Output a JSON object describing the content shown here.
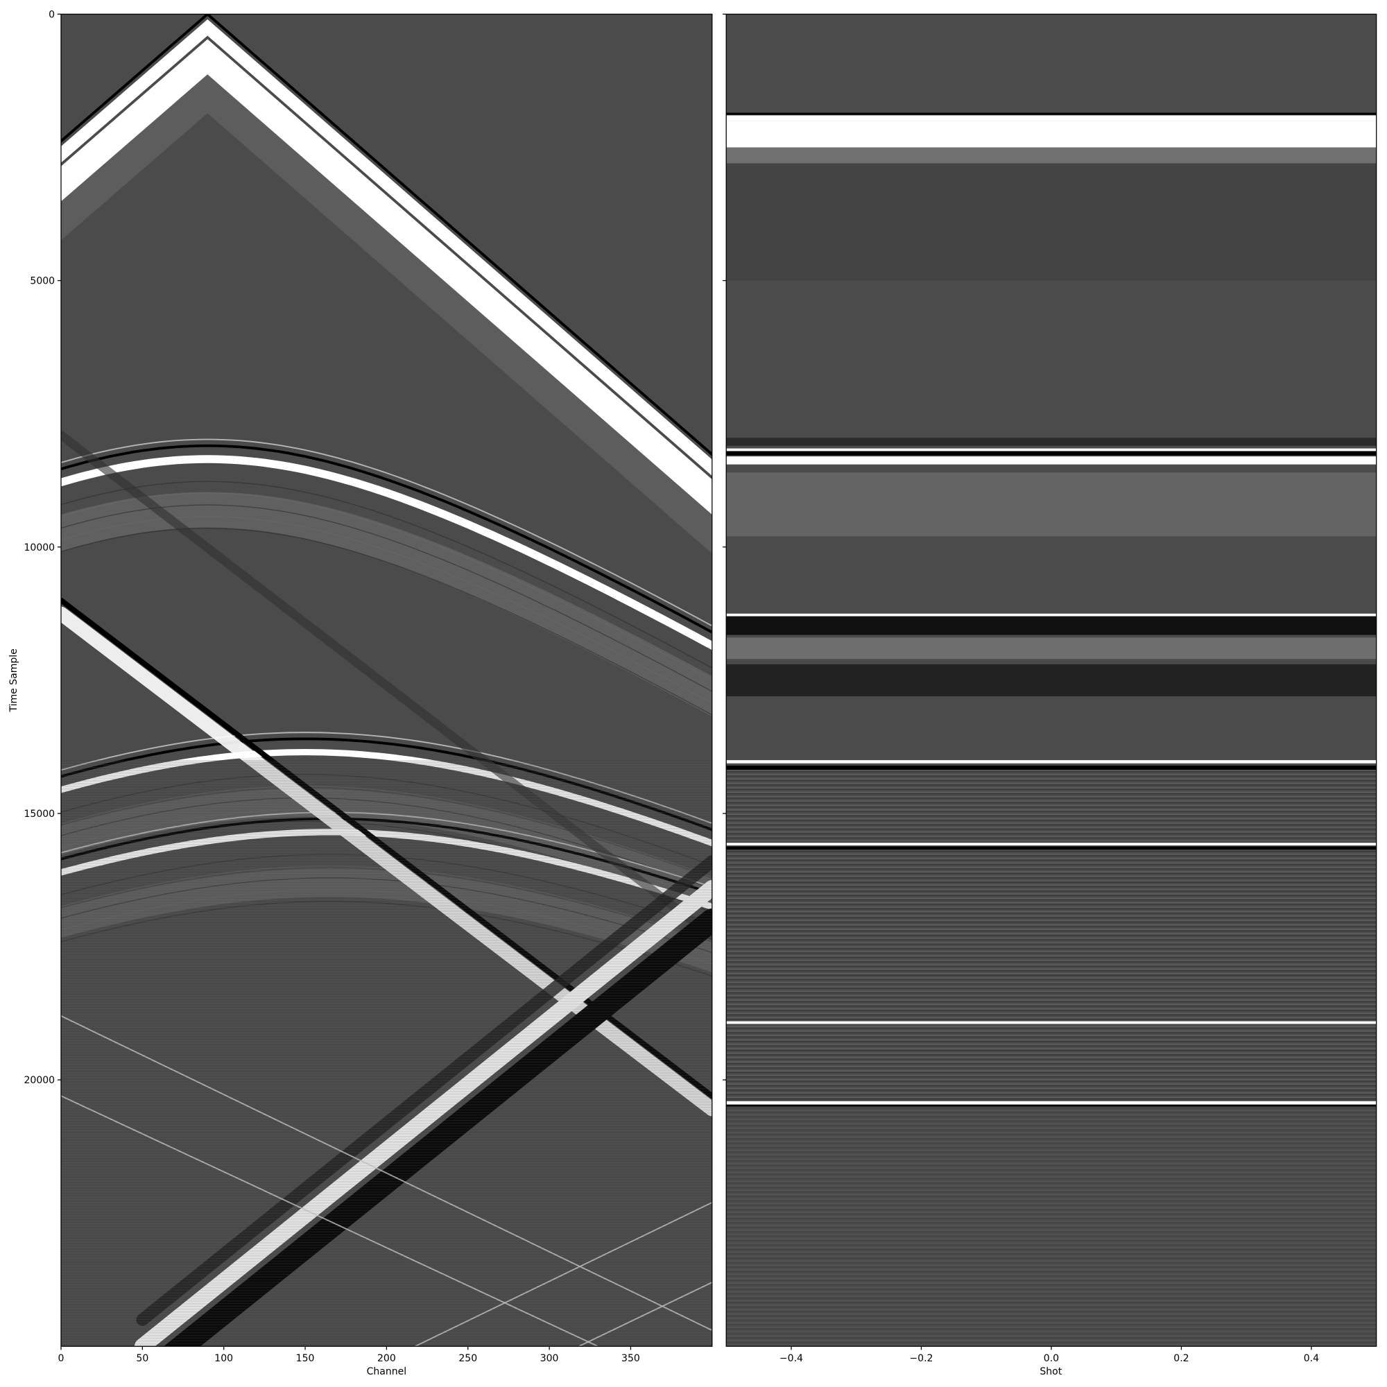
{
  "chart_data": [
    {
      "type": "image",
      "xlabel": "Channel",
      "ylabel": "Time Sample",
      "xlim": [
        0,
        400
      ],
      "ylim": [
        25000,
        0
      ],
      "xticks": [
        0,
        50,
        100,
        150,
        200,
        250,
        300,
        350
      ],
      "yticks": [
        0,
        5000,
        10000,
        15000,
        20000
      ],
      "cmap": "gray"
    },
    {
      "type": "image",
      "xlabel": "Shot",
      "sharey": true,
      "xlim": [
        -0.5,
        0.5
      ],
      "xticks": [
        {
          "value": -0.4,
          "label": "−0.4"
        },
        {
          "value": -0.2,
          "label": "−0.2"
        },
        {
          "value": 0,
          "label": "0.0"
        },
        0.2,
        0.4
      ],
      "cmap": "gray"
    }
  ]
}
